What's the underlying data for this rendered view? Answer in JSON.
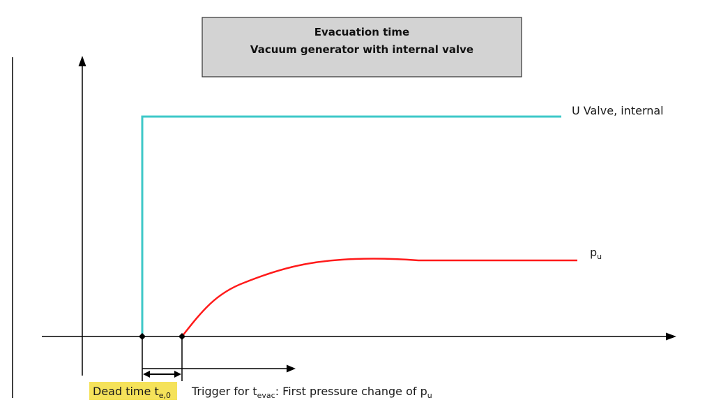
{
  "title": {
    "line1": "Evacuation time",
    "line2": "Vacuum generator with internal valve"
  },
  "series": {
    "valve_label": "U Valve, internal",
    "pressure_label_main": "p",
    "pressure_label_sub": "u"
  },
  "annotations": {
    "dead_time_main": "Dead time t",
    "dead_time_sub": "e,0",
    "trigger_prefix": "Trigger for t",
    "trigger_sub": "evac",
    "trigger_middle": ": First pressure change of p",
    "trigger_end_sub": "u"
  },
  "colors": {
    "valve_line": "#3ec8c8",
    "pressure_line": "#ff1a1a",
    "title_box_fill": "#d3d3d3",
    "highlight": "#f5e25a",
    "axis": "#000000"
  }
}
